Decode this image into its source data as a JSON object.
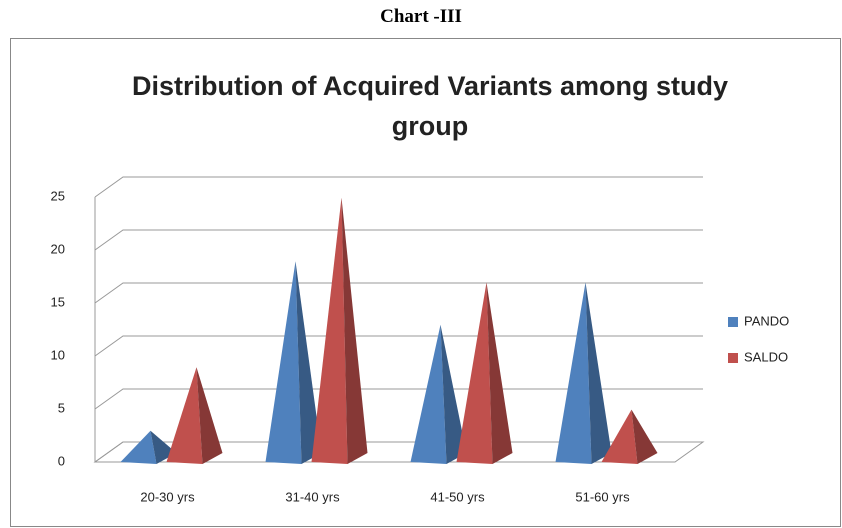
{
  "heading": "Chart  -III",
  "chart_data": {
    "type": "pyramid3d",
    "title": "Distribution of Acquired Variants among study group",
    "categories": [
      "20-30 yrs",
      "31-40 yrs",
      "41-50 yrs",
      "51-60 yrs"
    ],
    "series": [
      {
        "name": "PANDO",
        "color": "#4f81bd",
        "values": [
          2,
          18,
          12,
          16
        ]
      },
      {
        "name": "SALDO",
        "color": "#c0504d",
        "values": [
          8,
          24,
          16,
          4
        ]
      }
    ],
    "ylim": [
      0,
      25
    ],
    "yticks": [
      0,
      5,
      10,
      15,
      20,
      25
    ],
    "grid": true,
    "legend": "right"
  }
}
